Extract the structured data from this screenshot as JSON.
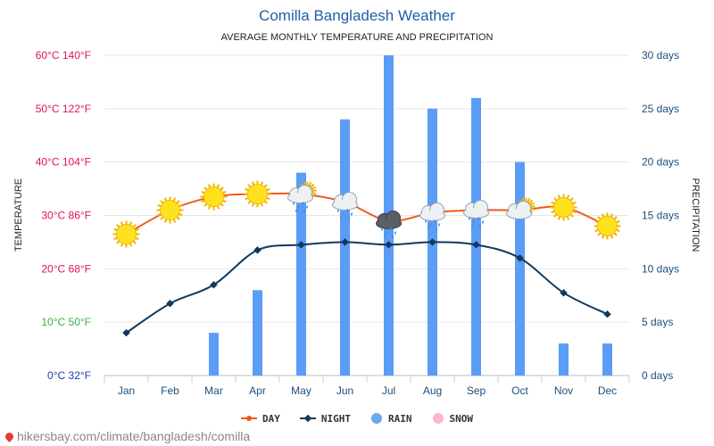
{
  "chart_data": {
    "type": "line+bar",
    "title": "Comilla Bangladesh Weather",
    "subtitle": "AVERAGE MONTHLY TEMPERATURE AND PRECIPITATION",
    "ylabel_left": "TEMPERATURE",
    "ylabel_right": "PRECIPITATION",
    "categories": [
      "Jan",
      "Feb",
      "Mar",
      "Apr",
      "May",
      "Jun",
      "Jul",
      "Aug",
      "Sep",
      "Oct",
      "Nov",
      "Dec"
    ],
    "left_ticks": [
      {
        "value": 0,
        "label": "0°C 32°F",
        "color": "#1a3fb0"
      },
      {
        "value": 10,
        "label": "10°C 50°F",
        "color": "#3cb043"
      },
      {
        "value": 20,
        "label": "20°C 68°F",
        "color": "#e0115f"
      },
      {
        "value": 30,
        "label": "30°C 86°F",
        "color": "#e0115f"
      },
      {
        "value": 40,
        "label": "40°C 104°F",
        "color": "#e0115f"
      },
      {
        "value": 50,
        "label": "50°C 122°F",
        "color": "#e0115f"
      },
      {
        "value": 60,
        "label": "60°C 140°F",
        "color": "#e0115f"
      }
    ],
    "left_range": [
      0,
      60
    ],
    "right_ticks": [
      {
        "value": 0,
        "label": "0 days"
      },
      {
        "value": 5,
        "label": "5 days"
      },
      {
        "value": 10,
        "label": "10 days"
      },
      {
        "value": 15,
        "label": "15 days"
      },
      {
        "value": 20,
        "label": "20 days"
      },
      {
        "value": 25,
        "label": "25 days"
      },
      {
        "value": 30,
        "label": "30 days"
      }
    ],
    "right_range": [
      0,
      30
    ],
    "series": [
      {
        "name": "DAY",
        "type": "line",
        "axis": "left",
        "color": "#f05a1a",
        "values": [
          26.5,
          31,
          33.5,
          34,
          34,
          32.5,
          29,
          30.5,
          31,
          31,
          31.5,
          28
        ]
      },
      {
        "name": "NIGHT",
        "type": "line",
        "axis": "left",
        "color": "#12395a",
        "values": [
          8,
          13.5,
          17,
          23.5,
          24.5,
          25,
          24.5,
          25,
          24.5,
          22,
          15.5,
          11.5
        ]
      },
      {
        "name": "RAIN",
        "type": "bar",
        "axis": "right",
        "color": "#5b9cf7",
        "values": [
          0,
          0,
          4,
          8,
          19,
          24,
          30,
          25,
          26,
          20,
          3,
          3
        ]
      },
      {
        "name": "SNOW",
        "type": "bar",
        "axis": "right",
        "color": "#ffb6c8",
        "values": [
          0,
          0,
          0,
          0,
          0,
          0,
          0,
          0,
          0,
          0,
          0,
          0
        ]
      }
    ],
    "weather_icons": [
      "sun",
      "sun",
      "sun",
      "sun",
      "sun-cloud-rain",
      "cloud-rain",
      "storm-rain",
      "cloud-rain",
      "cloud-rain",
      "sun-cloud",
      "sun",
      "sun"
    ],
    "grid": true,
    "legend_position": "bottom"
  },
  "legend": [
    {
      "label": "DAY",
      "color": "#f05a1a",
      "marker": "line"
    },
    {
      "label": "NIGHT",
      "color": "#12395a",
      "marker": "line"
    },
    {
      "label": "RAIN",
      "color": "#6ea8f0",
      "marker": "dot"
    },
    {
      "label": "SNOW",
      "color": "#ffb6c8",
      "marker": "dot"
    }
  ],
  "footer": "hikersbay.com/climate/bangladesh/comilla"
}
